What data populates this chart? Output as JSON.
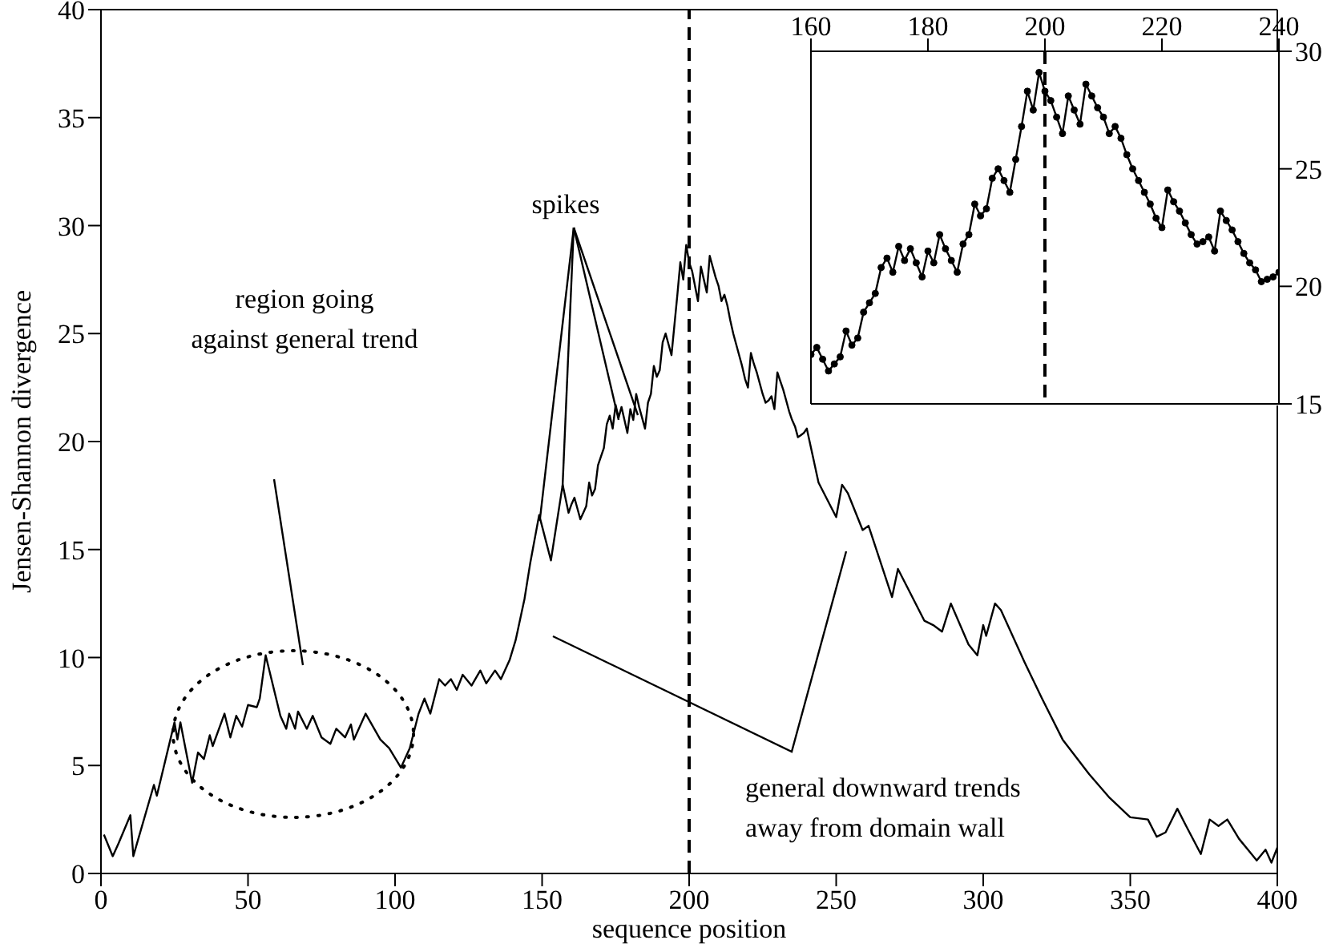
{
  "chart_data": [
    {
      "type": "line",
      "xlabel": "sequence position",
      "ylabel": "Jensen-Shannon divergence",
      "xlim": [
        0,
        400
      ],
      "xticks": [
        0,
        50,
        100,
        150,
        200,
        250,
        300,
        350,
        400
      ],
      "ylim": [
        0,
        40
      ],
      "yticks": [
        0,
        5,
        10,
        15,
        20,
        25,
        30,
        35,
        40
      ],
      "marker": "none",
      "ref_lines": [
        {
          "axis": "x",
          "value": 200,
          "line_style": "dashed"
        }
      ],
      "annotations": [
        {
          "text": "spikes",
          "x": 149,
          "y": 16.3
        },
        "region going\nagainst general trend",
        "general downward trends\naway from domain wall"
      ],
      "series": [
        {
          "color": "#000000",
          "x": [
            1,
            4,
            6,
            10,
            11,
            18,
            19,
            25,
            26,
            27,
            31,
            33,
            35,
            37,
            38,
            42,
            44,
            46,
            48,
            50,
            53,
            54,
            56,
            61,
            63,
            64,
            66,
            67,
            70,
            72,
            75,
            78,
            80,
            83,
            85,
            86,
            90,
            95,
            98,
            102,
            105,
            108,
            110,
            112,
            115,
            117,
            119,
            121,
            123,
            126,
            129,
            131,
            134,
            136,
            139,
            141,
            144,
            146,
            149,
            153,
            157,
            159,
            160,
            161,
            162,
            163,
            164,
            165,
            166,
            167,
            168,
            169,
            170,
            171,
            172,
            173,
            174,
            175,
            176,
            177,
            178,
            179,
            180,
            181,
            182,
            183,
            184,
            185,
            186,
            187,
            188,
            189,
            190,
            191,
            192,
            193,
            194,
            195,
            196,
            197,
            198,
            199,
            200,
            201,
            202,
            203,
            204,
            205,
            206,
            207,
            208,
            209,
            210,
            211,
            212,
            213,
            214,
            215,
            216,
            217,
            218,
            219,
            220,
            221,
            222,
            223,
            224,
            225,
            226,
            227,
            228,
            229,
            230,
            231,
            232,
            233,
            234,
            235,
            236,
            237,
            238,
            239,
            240,
            244,
            250,
            252,
            254,
            259,
            261,
            269,
            271,
            274,
            280,
            283,
            286,
            289,
            295,
            298,
            300,
            301,
            304,
            306,
            314,
            320,
            327,
            336,
            343,
            350,
            356,
            359,
            362,
            366,
            369,
            374,
            377,
            380,
            383,
            387,
            390,
            393,
            396,
            398,
            400
          ],
          "values": [
            1.8,
            0.8,
            1.4,
            2.7,
            0.8,
            4.1,
            3.6,
            7.0,
            6.2,
            7.0,
            4.2,
            5.6,
            5.3,
            6.4,
            5.9,
            7.4,
            6.3,
            7.3,
            6.8,
            7.8,
            7.7,
            8.1,
            10.1,
            7.3,
            6.7,
            7.4,
            6.7,
            7.5,
            6.7,
            7.3,
            6.3,
            6.0,
            6.7,
            6.3,
            6.9,
            6.2,
            7.4,
            6.2,
            5.8,
            4.9,
            5.8,
            7.4,
            8.1,
            7.4,
            9.0,
            8.7,
            9.0,
            8.5,
            9.2,
            8.7,
            9.4,
            8.8,
            9.4,
            9.0,
            9.9,
            10.8,
            12.7,
            14.4,
            16.6,
            14.5,
            18.0,
            16.7,
            17.1,
            17.4,
            16.9,
            16.4,
            16.7,
            17.0,
            18.1,
            17.5,
            17.8,
            18.9,
            19.3,
            19.7,
            20.8,
            21.2,
            20.6,
            21.7,
            21.1,
            21.6,
            21.0,
            20.4,
            21.5,
            21.0,
            22.2,
            21.6,
            21.1,
            20.6,
            21.8,
            22.2,
            23.5,
            23.0,
            23.3,
            24.6,
            25.0,
            24.5,
            24.0,
            25.4,
            26.8,
            28.3,
            27.5,
            29.1,
            28.3,
            27.9,
            27.2,
            26.5,
            28.1,
            27.5,
            26.9,
            28.6,
            28.1,
            27.6,
            27.2,
            26.5,
            26.8,
            26.3,
            25.6,
            25.0,
            24.5,
            24.0,
            23.5,
            22.9,
            22.5,
            24.1,
            23.6,
            23.2,
            22.7,
            22.2,
            21.8,
            21.9,
            22.1,
            21.5,
            23.2,
            22.8,
            22.4,
            21.9,
            21.4,
            21.0,
            20.7,
            20.2,
            20.3,
            20.4,
            20.6,
            18.1,
            16.5,
            18.0,
            17.6,
            15.9,
            16.1,
            12.8,
            14.1,
            13.3,
            11.7,
            11.5,
            11.2,
            12.5,
            10.6,
            10.1,
            11.5,
            11.0,
            12.5,
            12.2,
            9.8,
            8.1,
            6.2,
            4.6,
            3.5,
            2.6,
            2.5,
            1.7,
            1.9,
            3.0,
            2.2,
            0.9,
            2.5,
            2.2,
            2.5,
            1.6,
            1.1,
            0.6,
            1.1,
            0.5,
            1.2
          ]
        }
      ]
    },
    {
      "type": "line",
      "xlim": [
        160,
        240
      ],
      "xticks": [
        160,
        180,
        200,
        220,
        240
      ],
      "ylim": [
        15,
        30
      ],
      "yticks": [
        15,
        20,
        25,
        30
      ],
      "marker": "circle",
      "ref_lines": [
        {
          "axis": "x",
          "value": 200,
          "line_style": "dashed"
        }
      ],
      "series": [
        {
          "color": "#000000",
          "x": [
            160,
            161,
            162,
            163,
            164,
            165,
            166,
            167,
            168,
            169,
            170,
            171,
            172,
            173,
            174,
            175,
            176,
            177,
            178,
            179,
            180,
            181,
            182,
            183,
            184,
            185,
            186,
            187,
            188,
            189,
            190,
            191,
            192,
            193,
            194,
            195,
            196,
            197,
            198,
            199,
            200,
            201,
            202,
            203,
            204,
            205,
            206,
            207,
            208,
            209,
            210,
            211,
            212,
            213,
            214,
            215,
            216,
            217,
            218,
            219,
            220,
            221,
            222,
            223,
            224,
            225,
            226,
            227,
            228,
            229,
            230,
            231,
            232,
            233,
            234,
            235,
            236,
            237,
            238,
            239,
            240
          ],
          "values": [
            17.1,
            17.4,
            16.9,
            16.4,
            16.7,
            17.0,
            18.1,
            17.5,
            17.8,
            18.9,
            19.3,
            19.7,
            20.8,
            21.2,
            20.6,
            21.7,
            21.1,
            21.6,
            21.0,
            20.4,
            21.5,
            21.0,
            22.2,
            21.6,
            21.1,
            20.6,
            21.8,
            22.2,
            23.5,
            23.0,
            23.3,
            24.6,
            25.0,
            24.5,
            24.0,
            25.4,
            26.8,
            28.3,
            27.5,
            29.1,
            28.3,
            27.9,
            27.2,
            26.5,
            28.1,
            27.5,
            26.9,
            28.6,
            28.1,
            27.6,
            27.2,
            26.5,
            26.8,
            26.3,
            25.6,
            25.0,
            24.5,
            24.0,
            23.5,
            22.9,
            22.5,
            24.1,
            23.6,
            23.2,
            22.7,
            22.2,
            21.8,
            21.9,
            22.1,
            21.5,
            23.2,
            22.8,
            22.4,
            21.9,
            21.4,
            21.0,
            20.7,
            20.2,
            20.3,
            20.4,
            20.6
          ]
        }
      ]
    }
  ]
}
